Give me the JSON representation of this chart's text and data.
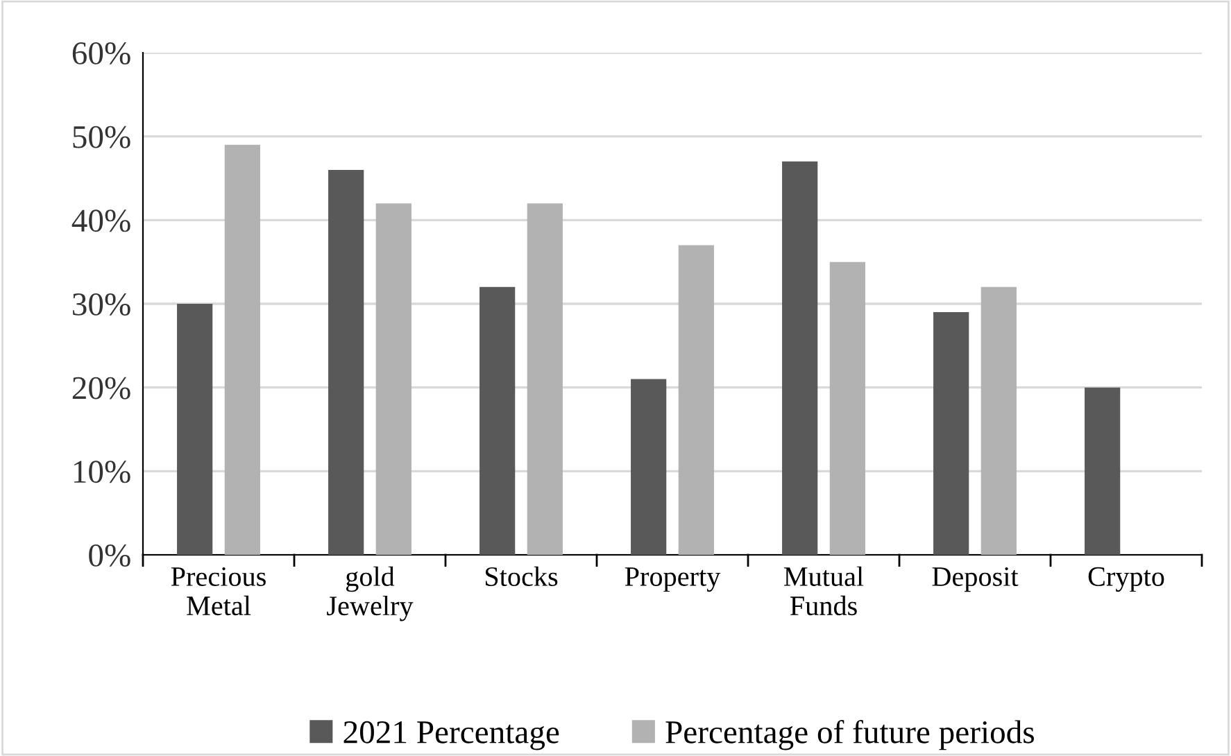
{
  "chart_data": {
    "type": "bar",
    "categories": [
      "Precious\nMetal",
      "gold\nJewelry",
      "Stocks",
      "Property",
      "Mutual\nFunds",
      "Deposit",
      "Crypto"
    ],
    "series": [
      {
        "name": "2021 Percentage",
        "color": "#595959",
        "values": [
          30,
          46,
          32,
          21,
          47,
          29,
          20
        ]
      },
      {
        "name": "Percentage of future periods",
        "color": "#b2b2b2",
        "values": [
          49,
          42,
          42,
          37,
          35,
          32,
          null
        ]
      }
    ],
    "ylim": [
      0,
      60
    ],
    "yticks": [
      {
        "value": 0,
        "label": "0%"
      },
      {
        "value": 10,
        "label": "10%"
      },
      {
        "value": 20,
        "label": "20%"
      },
      {
        "value": 30,
        "label": "30%"
      },
      {
        "value": 40,
        "label": "40%"
      },
      {
        "value": 50,
        "label": "50%"
      },
      {
        "value": 60,
        "label": "60%"
      }
    ],
    "grid": "y",
    "legend": "bottom"
  }
}
